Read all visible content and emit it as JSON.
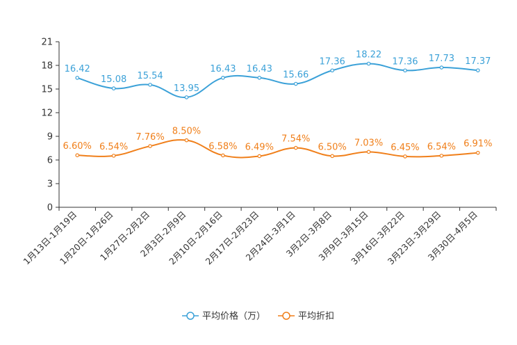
{
  "chart_data": {
    "type": "line",
    "title": "",
    "xlabel": "",
    "ylabel": "",
    "ylim": [
      0,
      21
    ],
    "yticks": [
      "0",
      "3",
      "6",
      "9",
      "12",
      "15",
      "18",
      "21"
    ],
    "grid": false,
    "legend_position": "bottom-center",
    "categories": [
      "1月13日-1月19日",
      "1月20日-1月26日",
      "1月27日-2月2日",
      "2月3日-2月9日",
      "2月10日-2月16日",
      "2月17日-2月23日",
      "2月24日-3月1日",
      "3月2日-3月8日",
      "3月9日-3月15日",
      "3月16日-3月22日",
      "3月23日-3月29日",
      "3月30日-4月5日"
    ],
    "series": [
      {
        "name": "平均价格（万）",
        "color": "#3ba1d8",
        "values": [
          16.42,
          15.08,
          15.54,
          13.95,
          16.43,
          16.43,
          15.66,
          17.36,
          18.22,
          17.36,
          17.73,
          17.37
        ],
        "labels": [
          "16.42",
          "15.08",
          "15.54",
          "13.95",
          "16.43",
          "16.43",
          "15.66",
          "17.36",
          "18.22",
          "17.36",
          "17.73",
          "17.37"
        ]
      },
      {
        "name": "平均折扣",
        "color": "#f07f1a",
        "values": [
          6.6,
          6.54,
          7.76,
          8.5,
          6.58,
          6.49,
          7.54,
          6.5,
          7.03,
          6.45,
          6.54,
          6.91
        ],
        "labels": [
          "6.60%",
          "6.54%",
          "7.76%",
          "8.50%",
          "6.58%",
          "6.49%",
          "7.54%",
          "6.50%",
          "7.03%",
          "6.45%",
          "6.54%",
          "6.91%"
        ]
      }
    ]
  }
}
